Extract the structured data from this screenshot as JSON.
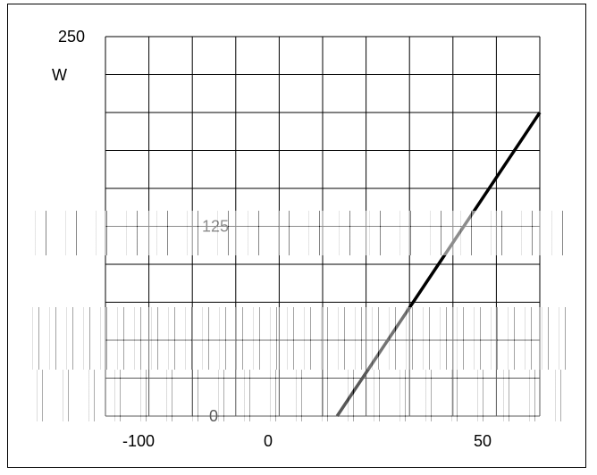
{
  "chart_data": {
    "type": "line",
    "title": "",
    "xlabel": "",
    "ylabel": "W",
    "ylim": [
      0,
      250
    ],
    "xlim": [
      -100,
      50
    ],
    "y_ticks": [
      {
        "value": 250,
        "label": "250"
      },
      {
        "value": 125,
        "label": "125"
      },
      {
        "value": 0,
        "label": "0"
      }
    ],
    "x_ticks": [
      {
        "value": -100,
        "label": "-100"
      },
      {
        "value": 0,
        "label": "0"
      },
      {
        "value": 50,
        "label": "50"
      }
    ],
    "grid": true,
    "series": [
      {
        "points": [
          [
            -20,
            0
          ],
          [
            50,
            200
          ]
        ],
        "color": "#000000"
      }
    ]
  }
}
